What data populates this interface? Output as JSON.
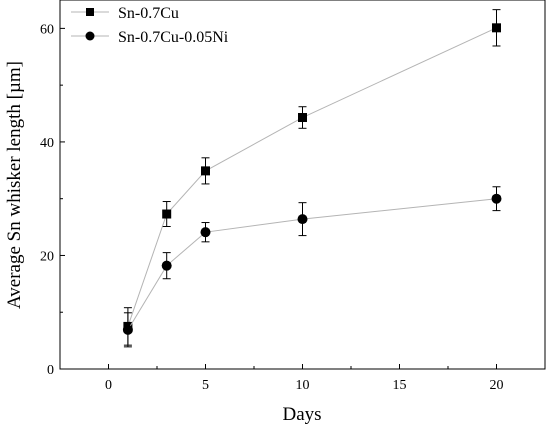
{
  "chart_data": {
    "type": "line",
    "title": "",
    "xlabel": "Days",
    "ylabel": "Average Sn whisker length [µm]",
    "xlim": [
      -2.5,
      22.5
    ],
    "ylim": [
      0,
      65
    ],
    "x_ticks": [
      0,
      5,
      10,
      15,
      20
    ],
    "x_tick_labels": [
      "0",
      "5",
      "10",
      "15",
      "20"
    ],
    "y_ticks": [
      0,
      20,
      40,
      60
    ],
    "y_tick_labels": [
      "0",
      "20",
      "40",
      "60"
    ],
    "grid": false,
    "legend_position": "top-left",
    "series": [
      {
        "name": "Sn-0.7Cu",
        "marker": "square",
        "color": "#000000",
        "line_color": "#b4b4b4",
        "x": [
          1,
          3,
          5,
          10,
          20
        ],
        "y": [
          7.5,
          27.3,
          34.9,
          44.3,
          60.1
        ],
        "error": [
          3.3,
          2.2,
          2.3,
          1.9,
          3.2
        ]
      },
      {
        "name": "Sn-0.7Cu-0.05Ni",
        "marker": "circle",
        "color": "#000000",
        "line_color": "#b4b4b4",
        "x": [
          1,
          3,
          5,
          10,
          20
        ],
        "y": [
          6.9,
          18.2,
          24.1,
          26.4,
          30.0
        ],
        "error": [
          3.0,
          2.3,
          1.7,
          2.9,
          2.1
        ]
      }
    ]
  }
}
